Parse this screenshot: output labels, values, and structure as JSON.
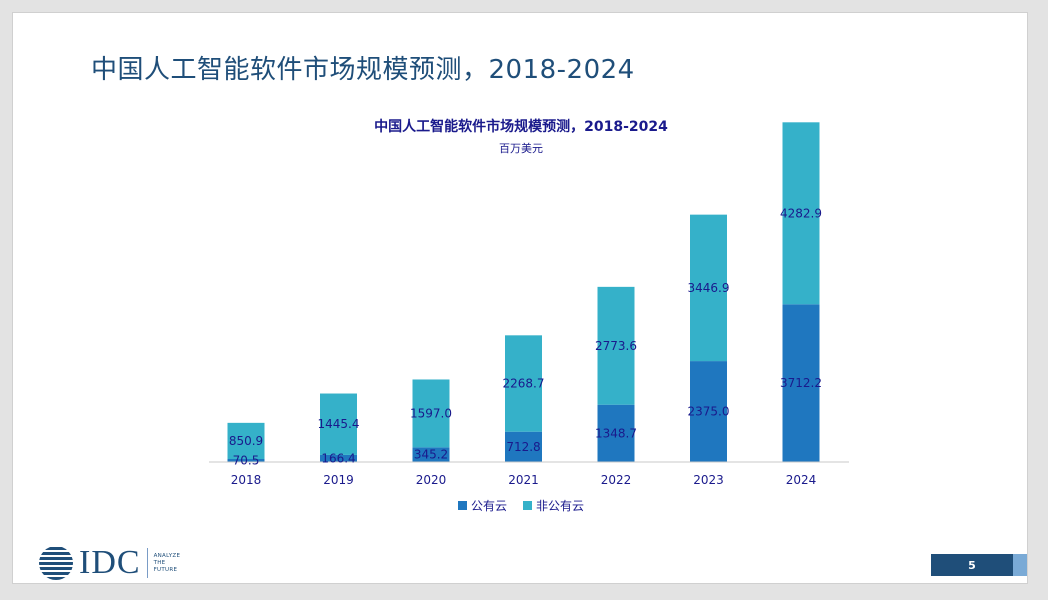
{
  "slide": {
    "title": "中国人工智能软件市场规模预测，2018-2024",
    "page_number": "5"
  },
  "logo": {
    "name": "IDC",
    "tagline": [
      "ANALYZE",
      "THE",
      "FUTURE"
    ]
  },
  "chart_data": {
    "type": "bar",
    "stacked": true,
    "title": "中国人工智能软件市场规模预测，2018-2024",
    "subtitle": "百万美元",
    "xlabel": "",
    "ylabel": "",
    "categories": [
      "2018",
      "2019",
      "2020",
      "2021",
      "2022",
      "2023",
      "2024"
    ],
    "series": [
      {
        "name": "公有云",
        "color": "#1f77bf",
        "values": [
          70.5,
          166.4,
          345.2,
          712.8,
          1348.7,
          2375.0,
          3712.2
        ]
      },
      {
        "name": "非公有云",
        "color": "#35b1c9",
        "values": [
          850.9,
          1445.4,
          1597.0,
          2268.7,
          2773.6,
          3446.9,
          4282.9
        ]
      }
    ],
    "ylim": [
      0,
      8000
    ],
    "grid": false,
    "legend": "bottom-center"
  }
}
